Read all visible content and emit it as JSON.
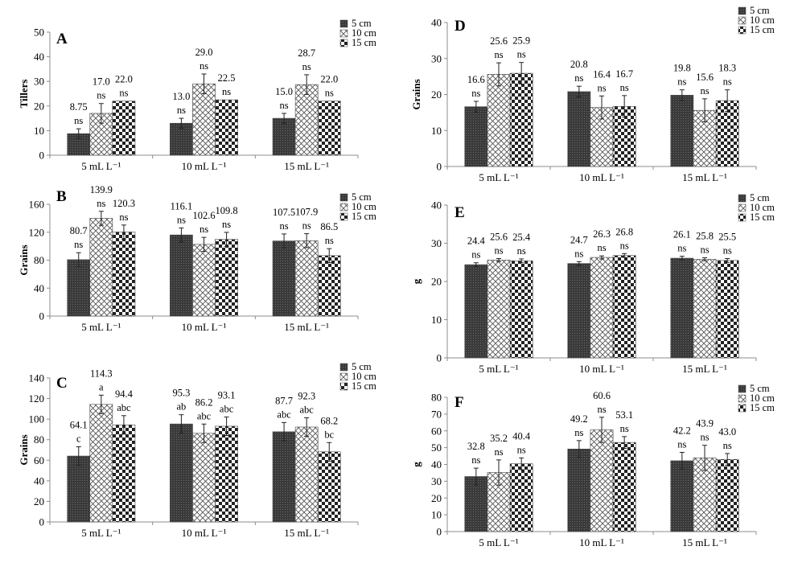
{
  "chart_data": [
    {
      "panel": "A",
      "type": "bar",
      "ylabel": "Tillers",
      "ylim": [
        0,
        50
      ],
      "yticks": [
        0,
        10,
        20,
        30,
        40,
        50
      ],
      "categories": [
        "5 mL L⁻¹",
        "10 mL L⁻¹",
        "15 mL L⁻¹"
      ],
      "series": [
        {
          "name": "5 cm",
          "values": [
            8.75,
            13.0,
            15.0
          ],
          "errors": [
            2.0,
            2.0,
            2.0
          ],
          "value_labels": [
            "8.75",
            "13.0",
            "15.0"
          ],
          "letters": [
            "ns",
            "ns",
            "ns"
          ]
        },
        {
          "name": "10 cm",
          "values": [
            17.0,
            29.0,
            28.7
          ],
          "errors": [
            4.0,
            4.0,
            4.0
          ],
          "value_labels": [
            "17.0",
            "29.0",
            "28.7"
          ],
          "letters": [
            "ns",
            "ns",
            "ns"
          ]
        },
        {
          "name": "15 cm",
          "values": [
            22.0,
            22.5,
            22.0
          ],
          "errors": [
            0,
            0,
            0
          ],
          "value_labels": [
            "22.0",
            "22.5",
            "22.0"
          ],
          "letters": [
            "ns",
            "ns",
            "ns"
          ]
        }
      ]
    },
    {
      "panel": "B",
      "type": "bar",
      "ylabel": "Grains",
      "ylim": [
        0,
        160
      ],
      "yticks": [
        0,
        40,
        80,
        120,
        160
      ],
      "categories": [
        "5 mL L⁻¹",
        "10 mL L⁻¹",
        "15 mL L⁻¹"
      ],
      "series": [
        {
          "name": "5 cm",
          "values": [
            80.7,
            116.1,
            107.5
          ],
          "errors": [
            10,
            10,
            10
          ],
          "value_labels": [
            "80.7",
            "116.1",
            "107.5"
          ],
          "letters": [
            "ns",
            "ns",
            "ns"
          ]
        },
        {
          "name": "10 cm",
          "values": [
            139.9,
            102.6,
            107.9
          ],
          "errors": [
            10,
            10,
            10
          ],
          "value_labels": [
            "139.9",
            "102.6",
            "107.9"
          ],
          "letters": [
            "ns",
            "ns",
            "ns"
          ]
        },
        {
          "name": "15 cm",
          "values": [
            120.3,
            109.8,
            86.5
          ],
          "errors": [
            10,
            10,
            10
          ],
          "value_labels": [
            "120.3",
            "109.8",
            "86.5"
          ],
          "letters": [
            "ns",
            "ns",
            "ns"
          ]
        }
      ]
    },
    {
      "panel": "C",
      "type": "bar",
      "ylabel": "Grains",
      "ylim": [
        0,
        140
      ],
      "yticks": [
        0,
        20,
        40,
        60,
        80,
        100,
        120,
        140
      ],
      "categories": [
        "5 mL L⁻¹",
        "10 mL L⁻¹",
        "15 mL L⁻¹"
      ],
      "series": [
        {
          "name": "5 cm",
          "values": [
            64.1,
            95.3,
            87.7
          ],
          "errors": [
            9,
            9,
            9
          ],
          "value_labels": [
            "64.1",
            "95.3",
            "87.7"
          ],
          "letters": [
            "c",
            "ab",
            "abc"
          ]
        },
        {
          "name": "10 cm",
          "values": [
            114.3,
            86.2,
            92.3
          ],
          "errors": [
            9,
            9,
            9
          ],
          "value_labels": [
            "114.3",
            "86.2",
            "92.3"
          ],
          "letters": [
            "a",
            "abc",
            "abc"
          ]
        },
        {
          "name": "15 cm",
          "values": [
            94.4,
            93.1,
            68.2
          ],
          "errors": [
            9,
            9,
            9
          ],
          "value_labels": [
            "94.4",
            "93.1",
            "68.2"
          ],
          "letters": [
            "abc",
            "abc",
            "bc"
          ]
        }
      ]
    },
    {
      "panel": "D",
      "type": "bar",
      "ylabel": "Grains",
      "ylim": [
        0,
        40
      ],
      "yticks": [
        0,
        10,
        20,
        30,
        40
      ],
      "categories": [
        "5 mL L⁻¹",
        "10 mL L⁻¹",
        "15 mL L⁻¹"
      ],
      "series": [
        {
          "name": "5 cm",
          "values": [
            16.6,
            20.8,
            19.8
          ],
          "errors": [
            1.5,
            1.5,
            1.5
          ],
          "value_labels": [
            "16.6",
            "20.8",
            "19.8"
          ],
          "letters": [
            "ns",
            "ns",
            "ns"
          ]
        },
        {
          "name": "10 cm",
          "values": [
            25.6,
            16.4,
            15.6
          ],
          "errors": [
            3.2,
            3.2,
            3.2
          ],
          "value_labels": [
            "25.6",
            "16.4",
            "15.6"
          ],
          "letters": [
            "ns",
            "ns",
            "ns"
          ]
        },
        {
          "name": "15 cm",
          "values": [
            25.9,
            16.7,
            18.3
          ],
          "errors": [
            3.0,
            3.0,
            3.0
          ],
          "value_labels": [
            "25.9",
            "16.7",
            "18.3"
          ],
          "letters": [
            "ns",
            "ns",
            "ns"
          ]
        }
      ]
    },
    {
      "panel": "E",
      "type": "bar",
      "ylabel": "g",
      "ylim": [
        0,
        40
      ],
      "yticks": [
        0,
        10,
        20,
        30,
        40
      ],
      "categories": [
        "5 mL L⁻¹",
        "10 mL L⁻¹",
        "15 mL L⁻¹"
      ],
      "series": [
        {
          "name": "5 cm",
          "values": [
            24.4,
            24.7,
            26.1
          ],
          "errors": [
            0.5,
            0.5,
            0.5
          ],
          "value_labels": [
            "24.4",
            "24.7",
            "26.1"
          ],
          "letters": [
            "ns",
            "ns",
            "ns"
          ]
        },
        {
          "name": "10 cm",
          "values": [
            25.6,
            26.3,
            25.8
          ],
          "errors": [
            0.4,
            0.4,
            0.4
          ],
          "value_labels": [
            "25.6",
            "26.3",
            "25.8"
          ],
          "letters": [
            "ns",
            "ns",
            "ns"
          ]
        },
        {
          "name": "15 cm",
          "values": [
            25.4,
            26.8,
            25.5
          ],
          "errors": [
            0.5,
            0.5,
            0.5
          ],
          "value_labels": [
            "25.4",
            "26.8",
            "25.5"
          ],
          "letters": [
            "ns",
            "ns",
            "ns"
          ]
        }
      ]
    },
    {
      "panel": "F",
      "type": "bar",
      "ylabel": "g",
      "ylim": [
        0,
        80
      ],
      "yticks": [
        0,
        10,
        20,
        30,
        40,
        50,
        60,
        70,
        80
      ],
      "categories": [
        "5 mL L⁻¹",
        "10 mL L⁻¹",
        "15 mL L⁻¹"
      ],
      "series": [
        {
          "name": "5 cm",
          "values": [
            32.8,
            49.2,
            42.2
          ],
          "errors": [
            5,
            5,
            5
          ],
          "value_labels": [
            "32.8",
            "49.2",
            "42.2"
          ],
          "letters": [
            "ns",
            "ns",
            "ns"
          ]
        },
        {
          "name": "10 cm",
          "values": [
            35.2,
            60.6,
            43.9
          ],
          "errors": [
            7.5,
            7.5,
            7.5
          ],
          "value_labels": [
            "35.2",
            "60.6",
            "43.9"
          ],
          "letters": [
            "ns",
            "ns",
            "ns"
          ]
        },
        {
          "name": "15 cm",
          "values": [
            40.4,
            53.1,
            43.0
          ],
          "errors": [
            3.5,
            3.5,
            3.5
          ],
          "value_labels": [
            "40.4",
            "53.1",
            "43.0"
          ],
          "letters": [
            "ns",
            "ns",
            "ns"
          ]
        }
      ]
    }
  ],
  "colors": {
    "series_5cm": "#3d3d3d",
    "series_10cm": "#ffffff",
    "series_15cm": "#444444",
    "axis": "#8c8c8c"
  }
}
